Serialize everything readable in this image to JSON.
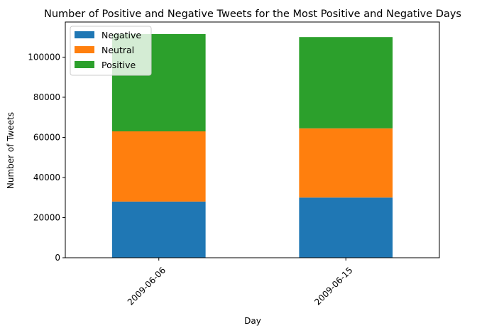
{
  "chart_data": {
    "type": "bar",
    "stacked": true,
    "title": "Number of Positive and Negative Tweets for the Most Positive and Negative Days",
    "xlabel": "Day",
    "ylabel": "Number of Tweets",
    "categories": [
      "2009-06-06",
      "2009-06-15"
    ],
    "series": [
      {
        "name": "Negative",
        "color": "#1f77b4",
        "values": [
          28000,
          30000
        ]
      },
      {
        "name": "Neutral",
        "color": "#ff7f0e",
        "values": [
          35000,
          34500
        ]
      },
      {
        "name": "Positive",
        "color": "#2ca02c",
        "values": [
          48500,
          45500
        ]
      }
    ],
    "ylim": [
      0,
      117500
    ],
    "yticks": [
      0,
      20000,
      40000,
      60000,
      80000,
      100000
    ],
    "yticklabels": [
      "0",
      "20000",
      "40000",
      "60000",
      "80000",
      "100000"
    ],
    "xtick_rotation": 45,
    "grid": false,
    "legend": {
      "placement": "top-left"
    }
  }
}
